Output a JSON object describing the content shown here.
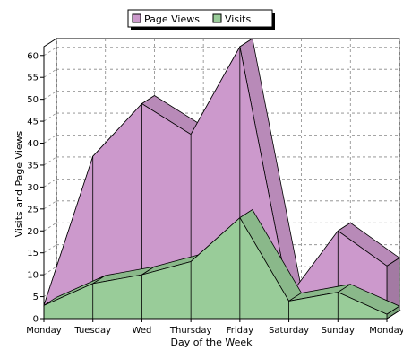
{
  "chart_data": {
    "type": "area",
    "categories": [
      "Monday",
      "Tuesday",
      "Wed",
      "Thursday",
      "Friday",
      "Saturday",
      "Sunday",
      "Monday"
    ],
    "series": [
      {
        "name": "Page Views",
        "values": [
          3,
          37,
          49,
          42,
          62,
          5,
          20,
          12
        ],
        "color": "#cc99cc"
      },
      {
        "name": "Visits",
        "values": [
          3,
          8,
          10,
          13,
          23,
          4,
          6,
          1
        ],
        "color": "#99cc99"
      }
    ],
    "title": "",
    "xlabel": "Day of the Week",
    "ylabel": "Visits and Page Views",
    "ylim": [
      0,
      62
    ],
    "yticks": [
      0,
      5,
      10,
      15,
      20,
      25,
      30,
      35,
      40,
      45,
      50,
      55,
      60
    ],
    "grid": true,
    "legend_position": "top-center",
    "three_d": true
  }
}
